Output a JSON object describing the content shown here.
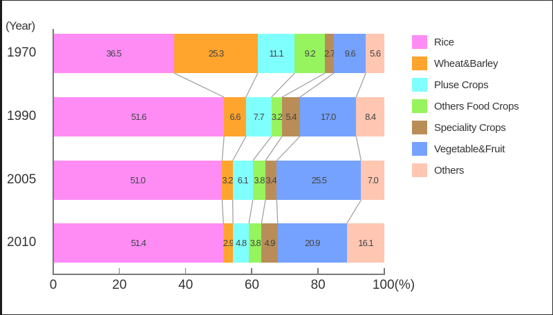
{
  "chart_data": {
    "type": "bar",
    "orientation": "horizontal",
    "stacked": "100%",
    "title": "",
    "ylabel": "(Year)",
    "xlabel": "(%)",
    "xlim": [
      0,
      100
    ],
    "x_ticks": [
      "0",
      "20",
      "40",
      "60",
      "80",
      "100(%)"
    ],
    "x_tick_values": [
      0,
      20,
      40,
      60,
      80,
      100
    ],
    "categories": [
      "1970",
      "1990",
      "2005",
      "2010"
    ],
    "legend_position": "right",
    "grid": false,
    "series": [
      {
        "name": "Rice",
        "color": "#FF8CF5",
        "values": [
          36.5,
          51.6,
          51.0,
          51.4
        ],
        "labels": [
          "36.5",
          "51.6",
          "51.0",
          "51.4"
        ]
      },
      {
        "name": "Wheat&Barley",
        "color": "#FFA42C",
        "values": [
          25.3,
          6.6,
          3.2,
          2.9
        ],
        "labels": [
          "25.3",
          "6.6",
          "3.2",
          "2.9"
        ]
      },
      {
        "name": "Pluse Crops",
        "color": "#80FFFF",
        "values": [
          11.1,
          7.7,
          6.1,
          4.8
        ],
        "labels": [
          "11.1",
          "7.7",
          "6.1",
          "4.8"
        ]
      },
      {
        "name": "Others Food Crops",
        "color": "#96F45E",
        "values": [
          9.2,
          3.2,
          3.8,
          3.8
        ],
        "labels": [
          "9.2",
          "3.2",
          "3.8",
          "3.8"
        ]
      },
      {
        "name": "Speciality Crops",
        "color": "#B98D58",
        "values": [
          2.7,
          5.4,
          3.4,
          4.9
        ],
        "labels": [
          "2.7",
          "5.4",
          "3.4",
          "4.9"
        ]
      },
      {
        "name": "Vegetable&Fruit",
        "color": "#75A2FF",
        "values": [
          9.6,
          17.0,
          25.5,
          20.9
        ],
        "labels": [
          "9.6",
          "17.0",
          "25.5",
          "20.9"
        ]
      },
      {
        "name": "Others",
        "color": "#FFC6B2",
        "values": [
          5.6,
          8.4,
          7.0,
          16.1
        ],
        "labels": [
          "5.6",
          "8.4",
          "7.0",
          "16.1"
        ]
      }
    ],
    "annotations": [
      "Connector lines link segment boundaries between consecutive year bars"
    ]
  },
  "axis": {
    "y_header": "(Year)",
    "x_ticks": [
      "0",
      "20",
      "40",
      "60",
      "80",
      "100(%)"
    ]
  },
  "legend": {
    "items": [
      "Rice",
      "Wheat&Barley",
      "Pluse Crops",
      "Others Food Crops",
      "Speciality Crops",
      "Vegetable&Fruit",
      "Others"
    ]
  }
}
